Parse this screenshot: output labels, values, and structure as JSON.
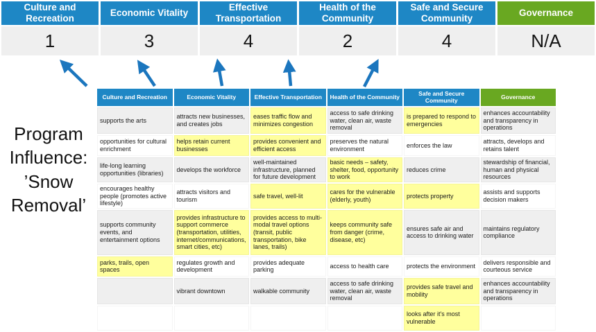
{
  "title": "Program Influence: ’Snow Removal’",
  "colors": {
    "priority_blue": "#1E87C5",
    "governance_green": "#69A821",
    "highlight_yellow": "#FFFF9D",
    "band_gray": "#EFEFEF",
    "arrow_blue": "#1B76BE"
  },
  "scoreboard": {
    "columns": [
      {
        "label": "Culture and Recreation",
        "score": "1"
      },
      {
        "label": "Economic Vitality",
        "score": "3"
      },
      {
        "label": "Effective Transportation",
        "score": "4"
      },
      {
        "label": "Health of the Community",
        "score": "2"
      },
      {
        "label": "Safe and Secure Community",
        "score": "4"
      },
      {
        "label": "Governance",
        "score": "N/A"
      }
    ]
  },
  "arrows": [
    "up-left-arrow",
    "up-left-arrow",
    "up-arrow",
    "up-arrow",
    "up-right-arrow"
  ],
  "matrix": {
    "headers": [
      "Culture and Recreation",
      "Economic Vitality",
      "Effective Transportation",
      "Health of the Community",
      "Safe and Secure Community",
      "Governance"
    ],
    "rows": [
      [
        {
          "text": "supports the arts",
          "hl": false
        },
        {
          "text": "attracts new businesses, and creates jobs",
          "hl": false
        },
        {
          "text": "eases traffic flow and minimizes congestion",
          "hl": true
        },
        {
          "text": "access to safe drinking water, clean air, waste removal",
          "hl": false
        },
        {
          "text": "is prepared to respond to emergencies",
          "hl": true
        },
        {
          "text": "enhances accountability and transparency in operations",
          "hl": false
        }
      ],
      [
        {
          "text": "opportunities for cultural enrichment",
          "hl": false
        },
        {
          "text": "helps retain current businesses",
          "hl": true
        },
        {
          "text": "provides convenient and efficient access",
          "hl": true
        },
        {
          "text": "preserves the natural environment",
          "hl": false
        },
        {
          "text": "enforces the law",
          "hl": false
        },
        {
          "text": "attracts, develops and retains talent",
          "hl": false
        }
      ],
      [
        {
          "text": "life-long learning opportunities (libraries)",
          "hl": false
        },
        {
          "text": "develops the workforce",
          "hl": false
        },
        {
          "text": "well-maintained infrastructure, planned for future development",
          "hl": false
        },
        {
          "text": "basic needs – safety, shelter, food, opportunity to work",
          "hl": true
        },
        {
          "text": "reduces crime",
          "hl": false
        },
        {
          "text": "stewardship of financial, human and physical resources",
          "hl": false
        }
      ],
      [
        {
          "text": "encourages healthy people (promotes active lifestyle)",
          "hl": false
        },
        {
          "text": "attracts visitors and tourism",
          "hl": false
        },
        {
          "text": "safe travel, well-lit",
          "hl": true
        },
        {
          "text": "cares for the vulnerable (elderly, youth)",
          "hl": true
        },
        {
          "text": "protects property",
          "hl": true
        },
        {
          "text": "assists and supports decision makers",
          "hl": false
        }
      ],
      [
        {
          "text": "supports community events, and entertainment options",
          "hl": false
        },
        {
          "text": "provides infrastructure to support commerce (transportation, utilities, internet/communications, smart cities, etc)",
          "hl": true
        },
        {
          "text": "provides access to multi-modal travel options (transit, public transportation, bike lanes, trails)",
          "hl": true
        },
        {
          "text": "keeps community safe from danger (crime, disease, etc)",
          "hl": true
        },
        {
          "text": "ensures safe air and access to drinking water",
          "hl": false
        },
        {
          "text": "maintains regulatory compliance",
          "hl": false
        }
      ],
      [
        {
          "text": "parks, trails, open spaces",
          "hl": true
        },
        {
          "text": "regulates growth and development",
          "hl": false
        },
        {
          "text": "provides adequate parking",
          "hl": false
        },
        {
          "text": "access to health care",
          "hl": false
        },
        {
          "text": "protects the environment",
          "hl": false
        },
        {
          "text": "delivers responsible and courteous service",
          "hl": false
        }
      ],
      [
        {
          "text": "",
          "hl": false
        },
        {
          "text": "vibrant downtown",
          "hl": false
        },
        {
          "text": "walkable community",
          "hl": false
        },
        {
          "text": "access to safe drinking water, clean air, waste removal",
          "hl": false
        },
        {
          "text": "provides safe travel and mobility",
          "hl": true
        },
        {
          "text": "enhances accountability and transparency in operations",
          "hl": false
        }
      ],
      [
        {
          "text": "",
          "hl": false
        },
        {
          "text": "",
          "hl": false
        },
        {
          "text": "",
          "hl": false
        },
        {
          "text": "",
          "hl": false
        },
        {
          "text": "looks after it's most vulnerable",
          "hl": true
        },
        {
          "text": "",
          "hl": false
        }
      ]
    ]
  }
}
